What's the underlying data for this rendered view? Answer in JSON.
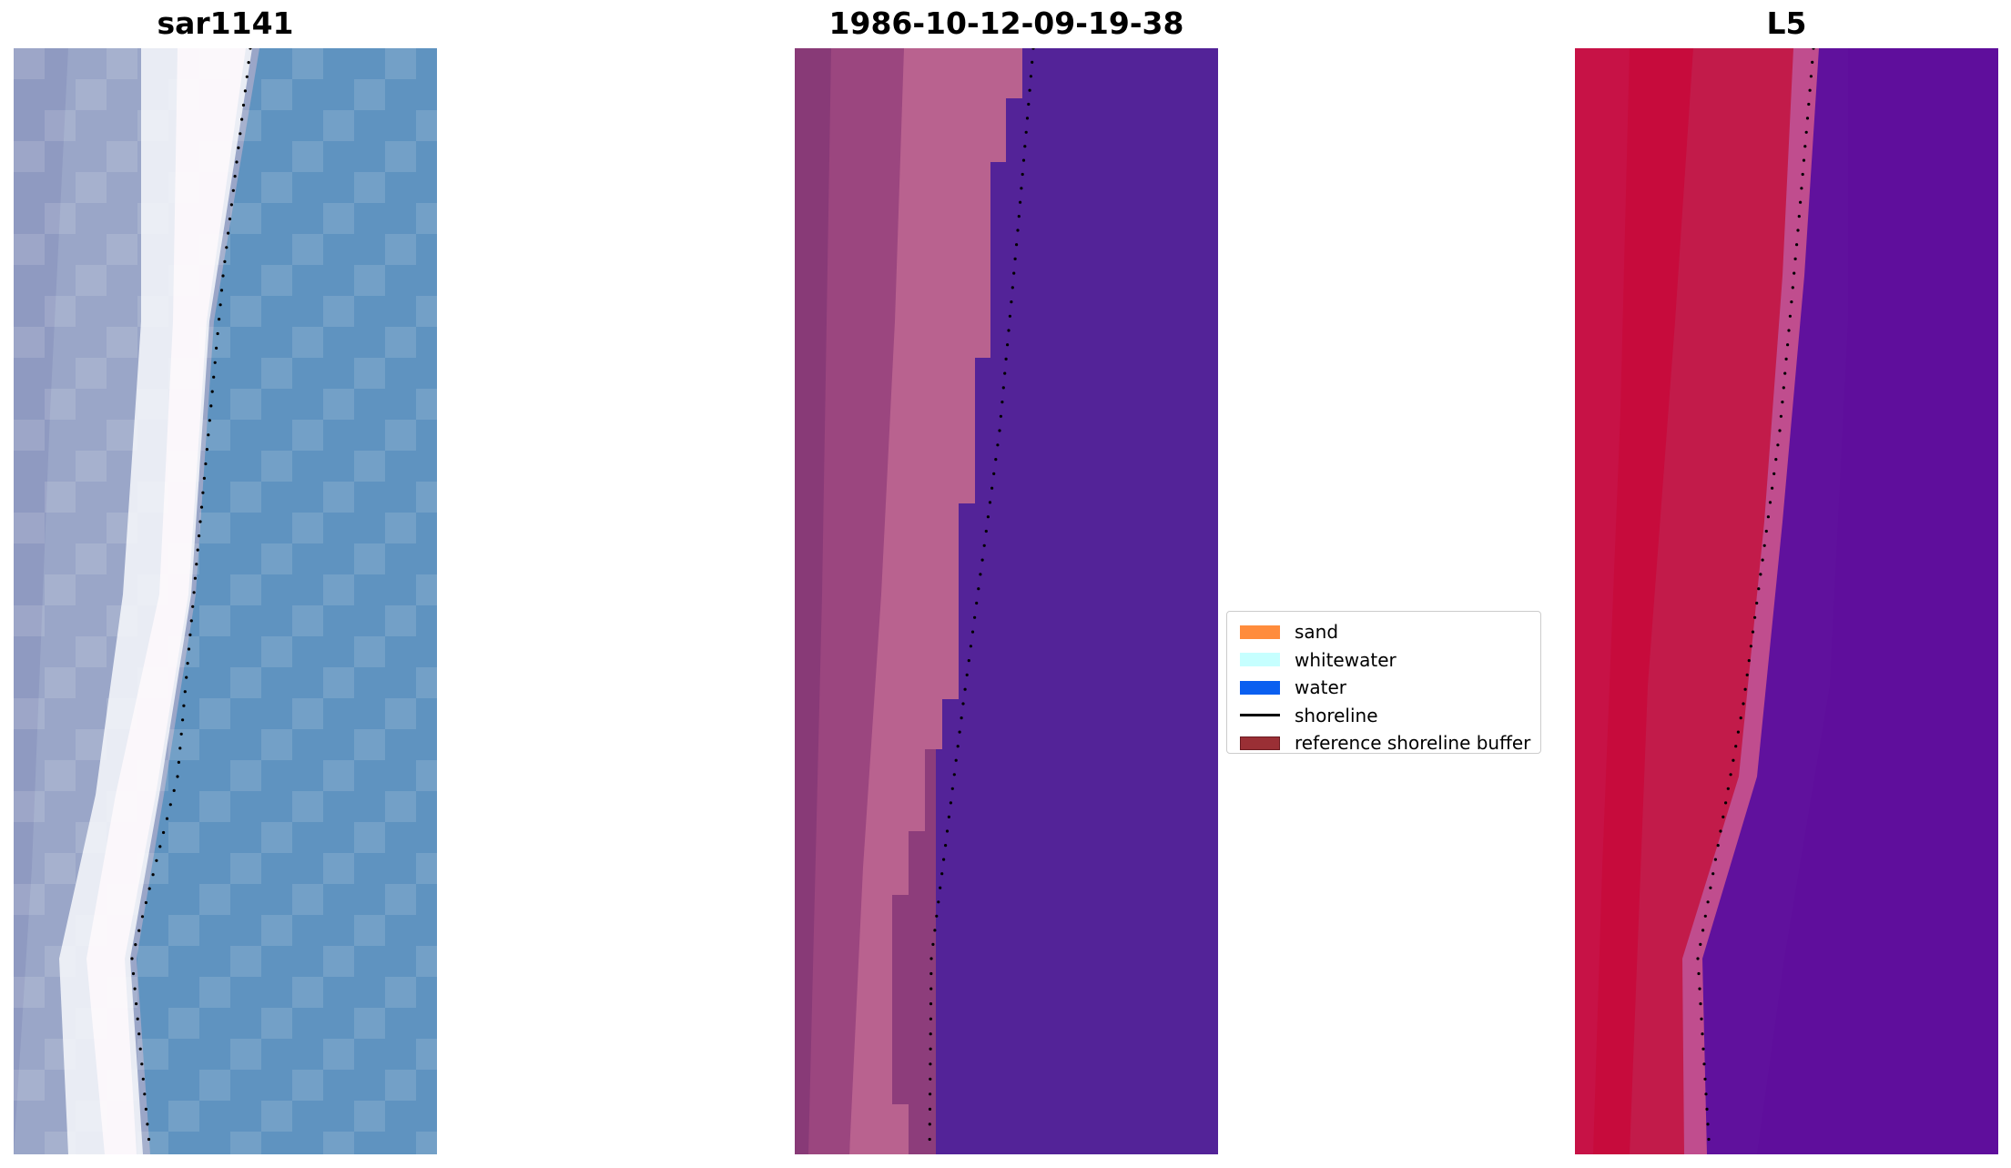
{
  "panels": [
    {
      "title": "sar1141"
    },
    {
      "title": "1986-10-12-09-19-38"
    },
    {
      "title": "L5"
    }
  ],
  "legend": {
    "items": [
      {
        "label": "sand",
        "color": "#ff8c3c",
        "kind": "patch"
      },
      {
        "label": "whitewater",
        "color": "#c6ffff",
        "kind": "patch"
      },
      {
        "label": "water",
        "color": "#0a5ff0",
        "kind": "patch"
      },
      {
        "label": "shoreline",
        "color": "#000000",
        "kind": "line"
      },
      {
        "label": "reference shoreline buffer",
        "color": "#9a2f35",
        "kind": "patch"
      }
    ]
  },
  "colors": {
    "rgb_water": "#5f96c2",
    "rgb_surf": "#f4f3f7",
    "rgb_land": "#8e9dc2",
    "class_water": "#532398",
    "class_sand": "#b8618f",
    "class_land": "#8a3a78",
    "index_land": "#c01a44",
    "index_water": "#62109c",
    "shoreline_dots": "#000000"
  }
}
